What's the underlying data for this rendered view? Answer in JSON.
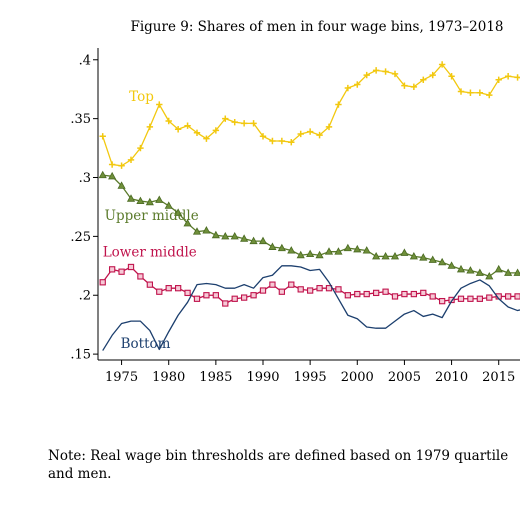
{
  "chart_data": {
    "type": "line",
    "title": "Figure 9: Shares of men in four wage bins, 1973–2018",
    "xlabel": "",
    "ylabel": "",
    "xlim": [
      1972.5,
      2021.5
    ],
    "ylim": [
      0.145,
      0.41
    ],
    "x_ticks": [
      1975,
      1980,
      1985,
      1990,
      1995,
      2000,
      2005,
      2010,
      2015
    ],
    "y_ticks": [
      0.15,
      0.2,
      0.25,
      0.3,
      0.35,
      0.4
    ],
    "y_tick_labels": [
      ".15",
      ".2",
      ".25",
      ".3",
      ".35",
      ".4"
    ],
    "grid": false,
    "legend": "inline labels",
    "x": [
      1973,
      1974,
      1975,
      1976,
      1977,
      1978,
      1979,
      1980,
      1981,
      1982,
      1983,
      1984,
      1985,
      1986,
      1987,
      1988,
      1989,
      1990,
      1991,
      1992,
      1993,
      1994,
      1995,
      1996,
      1997,
      1998,
      1999,
      2000,
      2001,
      2002,
      2003,
      2004,
      2005,
      2006,
      2007,
      2008,
      2009,
      2010,
      2011,
      2012,
      2013,
      2014,
      2015,
      2016,
      2017,
      2018
    ],
    "series": [
      {
        "name": "Top",
        "color": "#f2c80f",
        "marker": "plus",
        "values": [
          0.335,
          0.311,
          0.31,
          0.315,
          0.325,
          0.343,
          0.362,
          0.348,
          0.341,
          0.344,
          0.338,
          0.333,
          0.34,
          0.35,
          0.347,
          0.346,
          0.346,
          0.335,
          0.331,
          0.331,
          0.33,
          0.337,
          0.339,
          0.336,
          0.343,
          0.362,
          0.376,
          0.379,
          0.387,
          0.391,
          0.39,
          0.388,
          0.378,
          0.377,
          0.383,
          0.387,
          0.396,
          0.386,
          0.373,
          0.372,
          0.372,
          0.37,
          0.383,
          0.386,
          0.385,
          0.384
        ]
      },
      {
        "name": "Upper middle",
        "color": "#5a7a2a",
        "marker": "triangle",
        "values": [
          0.302,
          0.301,
          0.293,
          0.282,
          0.28,
          0.279,
          0.281,
          0.276,
          0.27,
          0.261,
          0.254,
          0.255,
          0.251,
          0.25,
          0.25,
          0.248,
          0.246,
          0.246,
          0.241,
          0.24,
          0.238,
          0.234,
          0.235,
          0.234,
          0.237,
          0.237,
          0.24,
          0.239,
          0.238,
          0.233,
          0.233,
          0.233,
          0.236,
          0.233,
          0.232,
          0.23,
          0.228,
          0.225,
          0.222,
          0.221,
          0.219,
          0.216,
          0.222,
          0.219,
          0.219,
          0.218
        ]
      },
      {
        "name": "Lower middle",
        "color": "#c0134c",
        "marker": "square",
        "values": [
          0.211,
          0.222,
          0.22,
          0.224,
          0.216,
          0.209,
          0.203,
          0.206,
          0.206,
          0.202,
          0.197,
          0.2,
          0.2,
          0.193,
          0.197,
          0.198,
          0.2,
          0.204,
          0.209,
          0.203,
          0.209,
          0.205,
          0.204,
          0.206,
          0.206,
          0.205,
          0.2,
          0.201,
          0.201,
          0.202,
          0.203,
          0.199,
          0.201,
          0.201,
          0.202,
          0.199,
          0.195,
          0.196,
          0.197,
          0.197,
          0.197,
          0.198,
          0.199,
          0.199,
          0.199,
          0.199
        ]
      },
      {
        "name": "Bottom",
        "color": "#1c3f6e",
        "marker": "none",
        "values": [
          0.153,
          0.166,
          0.176,
          0.178,
          0.178,
          0.17,
          0.154,
          0.169,
          0.183,
          0.194,
          0.209,
          0.21,
          0.209,
          0.206,
          0.206,
          0.209,
          0.206,
          0.215,
          0.217,
          0.225,
          0.225,
          0.224,
          0.221,
          0.222,
          0.211,
          0.197,
          0.183,
          0.18,
          0.173,
          0.172,
          0.172,
          0.178,
          0.184,
          0.187,
          0.182,
          0.184,
          0.181,
          0.195,
          0.206,
          0.21,
          0.213,
          0.208,
          0.197,
          0.19,
          0.187,
          0.189
        ]
      }
    ],
    "annotations": [
      {
        "text": "Top",
        "x": 1975.8,
        "y": 0.365,
        "color": "#f2c80f"
      },
      {
        "text": "Upper middle",
        "x": 1973.2,
        "y": 0.264,
        "color": "#5a7a2a"
      },
      {
        "text": "Lower middle",
        "x": 1973.0,
        "y": 0.233,
        "color": "#c0134c"
      },
      {
        "text": "Bottom",
        "x": 1974.9,
        "y": 0.155,
        "color": "#1c3f6e"
      }
    ]
  },
  "note": {
    "line1": "Note:  Real wage bin thresholds are defined based on 1979 quartiles for pooled women",
    "line2": "and men."
  }
}
